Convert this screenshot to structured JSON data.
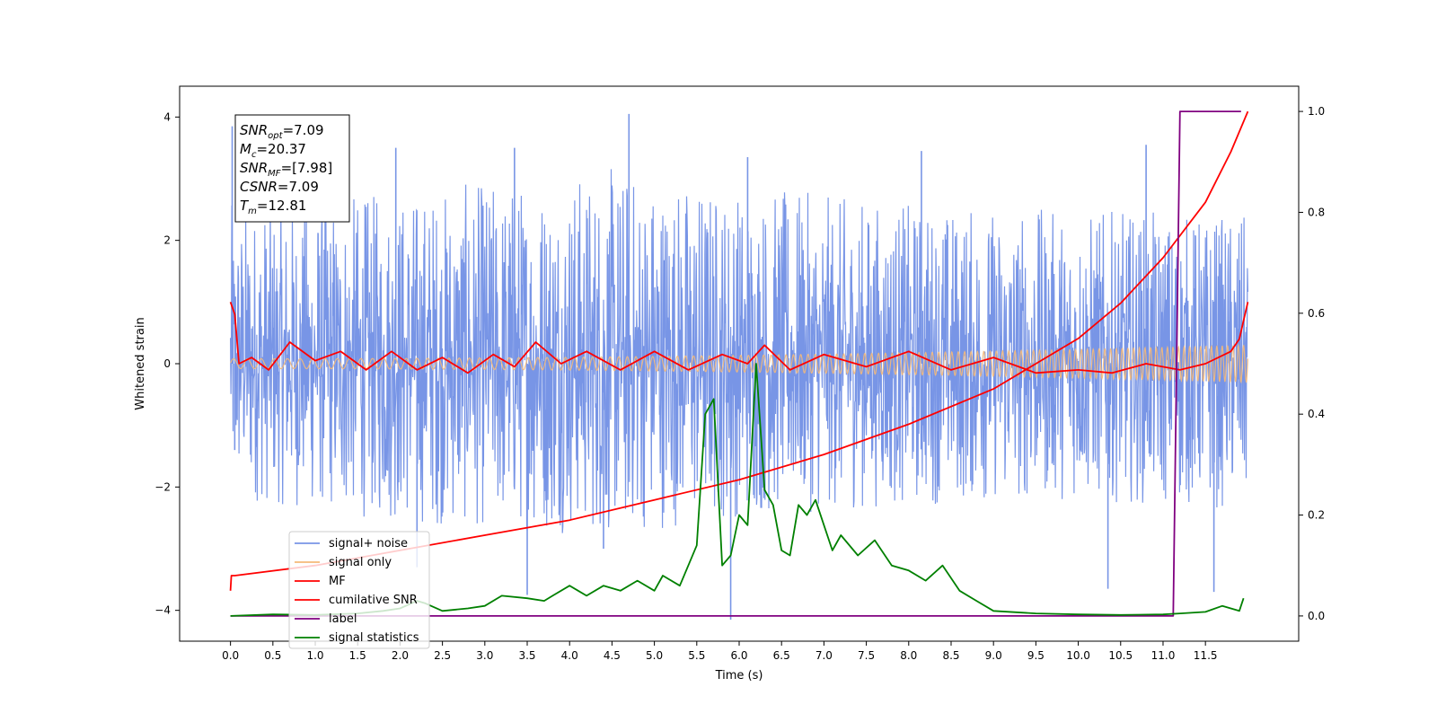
{
  "chart_data": {
    "type": "line",
    "xlabel": "Time (s)",
    "ylabel": "Whitened strain",
    "xlim": [
      -0.6,
      12.6
    ],
    "ylim": [
      -4.5,
      4.5
    ],
    "y2lim": [
      -0.05,
      1.05
    ],
    "x_ticks": [
      0.0,
      0.5,
      1.0,
      1.5,
      2.0,
      2.5,
      3.0,
      3.5,
      4.0,
      4.5,
      5.0,
      5.5,
      6.0,
      6.5,
      7.0,
      7.5,
      8.0,
      8.5,
      9.0,
      9.5,
      10.0,
      10.5,
      11.0,
      11.5
    ],
    "x_tick_labels": [
      "0.0",
      "0.5",
      "1.0",
      "1.5",
      "2.0",
      "2.5",
      "3.0",
      "3.5",
      "4.0",
      "4.5",
      "5.0",
      "5.5",
      "6.0",
      "6.5",
      "7.0",
      "7.5",
      "8.0",
      "8.5",
      "9.0",
      "9.5",
      "10.0",
      "10.5",
      "11.0",
      "11.5"
    ],
    "y_ticks": [
      -4,
      -2,
      0,
      2,
      4
    ],
    "y_tick_labels": [
      "−4",
      "−2",
      "0",
      "2",
      "4"
    ],
    "y2_ticks": [
      0.0,
      0.2,
      0.4,
      0.6,
      0.8,
      1.0
    ],
    "y2_tick_labels": [
      "0.0",
      "0.2",
      "0.4",
      "0.6",
      "0.8",
      "1.0"
    ],
    "grid": false,
    "legend_position": "bottom-left",
    "annotation_box": {
      "lines": [
        {
          "sym": "SNR",
          "sub": "opt",
          "val": "=7.09"
        },
        {
          "sym": "M",
          "sub": "c",
          "val": "=20.37"
        },
        {
          "sym": "SNR",
          "sub": "MF",
          "val": "=[7.98]"
        },
        {
          "sym": "CSNR",
          "sub": "",
          "val": "=7.09"
        },
        {
          "sym": "T",
          "sub": "m",
          "val": "=12.81"
        }
      ]
    },
    "series": [
      {
        "name": "signal+ noise",
        "axis": "left",
        "color": "#7895e6",
        "kind": "noise",
        "envelope_upper": [
          [
            0.0,
            2.6
          ],
          [
            2.0,
            2.8
          ],
          [
            4.5,
            3.2
          ],
          [
            6.0,
            2.9
          ],
          [
            8.0,
            2.6
          ],
          [
            10.0,
            2.5
          ],
          [
            12.0,
            2.4
          ]
        ],
        "envelope_lower": [
          [
            0.0,
            -2.2
          ],
          [
            2.0,
            -2.6
          ],
          [
            4.5,
            -2.8
          ],
          [
            6.0,
            -2.5
          ],
          [
            8.0,
            -2.3
          ],
          [
            10.0,
            -2.2
          ],
          [
            12.0,
            -2.4
          ]
        ],
        "spikes": [
          [
            0.02,
            3.85
          ],
          [
            0.05,
            -1.4
          ],
          [
            4.7,
            4.05
          ],
          [
            10.8,
            3.55
          ],
          [
            8.15,
            3.45
          ],
          [
            6.1,
            3.35
          ],
          [
            1.95,
            3.5
          ],
          [
            3.35,
            3.5
          ],
          [
            5.9,
            -4.15
          ],
          [
            3.5,
            -3.75
          ],
          [
            10.35,
            -3.65
          ],
          [
            11.6,
            -3.7
          ],
          [
            2.2,
            -3.3
          ],
          [
            4.4,
            -3.0
          ]
        ]
      },
      {
        "name": "signal only",
        "axis": "left",
        "color": "#f5b978",
        "kind": "chirp",
        "x_start": 0.0,
        "x_end": 12.0,
        "amplitude_start": 0.08,
        "amplitude_end": 0.3,
        "freq_start": 6.0,
        "freq_end": 16.0
      },
      {
        "name": "MF",
        "axis": "left",
        "color": "#ff0000",
        "x": [
          0.0,
          0.05,
          0.1,
          0.25,
          0.45,
          0.7,
          1.0,
          1.3,
          1.6,
          1.9,
          2.2,
          2.5,
          2.8,
          3.1,
          3.35,
          3.6,
          3.9,
          4.2,
          4.6,
          5.0,
          5.4,
          5.8,
          6.1,
          6.3,
          6.6,
          7.0,
          7.5,
          8.0,
          8.5,
          9.0,
          9.5,
          10.0,
          10.4,
          10.8,
          11.2,
          11.5,
          11.8,
          11.9,
          12.0
        ],
        "y": [
          1.0,
          0.8,
          0.0,
          0.1,
          -0.1,
          0.35,
          0.05,
          0.2,
          -0.1,
          0.2,
          -0.1,
          0.1,
          -0.15,
          0.15,
          -0.05,
          0.35,
          0.0,
          0.2,
          -0.1,
          0.2,
          -0.1,
          0.15,
          0.0,
          0.3,
          -0.1,
          0.15,
          -0.05,
          0.2,
          -0.1,
          0.1,
          -0.15,
          -0.1,
          -0.15,
          0.0,
          -0.1,
          0.0,
          0.2,
          0.4,
          1.0
        ]
      },
      {
        "name": "cumilative SNR",
        "axis": "right",
        "color": "#ff0000",
        "x": [
          0.0,
          0.01,
          0.05,
          1.0,
          2.0,
          3.0,
          4.0,
          5.0,
          6.0,
          7.0,
          8.0,
          9.0,
          9.5,
          10.0,
          10.5,
          11.0,
          11.5,
          11.8,
          12.0
        ],
        "y": [
          0.05,
          0.08,
          0.08,
          0.1,
          0.13,
          0.16,
          0.19,
          0.23,
          0.27,
          0.32,
          0.38,
          0.45,
          0.5,
          0.55,
          0.62,
          0.71,
          0.82,
          0.92,
          1.0
        ]
      },
      {
        "name": "label",
        "axis": "right",
        "color": "#800080",
        "x": [
          0.0,
          11.12,
          11.2,
          11.92
        ],
        "y": [
          0.0,
          0.0,
          1.0,
          1.0
        ]
      },
      {
        "name": "signal statistics",
        "axis": "right",
        "color": "#008000",
        "x": [
          0.0,
          0.5,
          1.0,
          1.5,
          1.8,
          2.0,
          2.2,
          2.3,
          2.5,
          2.8,
          3.0,
          3.2,
          3.5,
          3.7,
          3.8,
          4.0,
          4.1,
          4.2,
          4.4,
          4.6,
          4.8,
          5.0,
          5.1,
          5.3,
          5.4,
          5.5,
          5.6,
          5.7,
          5.8,
          5.9,
          6.0,
          6.1,
          6.2,
          6.3,
          6.4,
          6.5,
          6.6,
          6.7,
          6.8,
          6.9,
          7.0,
          7.1,
          7.2,
          7.4,
          7.6,
          7.8,
          8.0,
          8.2,
          8.4,
          8.6,
          8.8,
          9.0,
          9.5,
          10.0,
          10.5,
          11.0,
          11.2,
          11.5,
          11.7,
          11.9,
          11.95
        ],
        "y": [
          0.0,
          0.003,
          0.002,
          0.005,
          0.01,
          0.015,
          0.03,
          0.025,
          0.01,
          0.015,
          0.02,
          0.04,
          0.035,
          0.03,
          0.04,
          0.06,
          0.05,
          0.04,
          0.06,
          0.05,
          0.07,
          0.05,
          0.08,
          0.06,
          0.1,
          0.14,
          0.4,
          0.43,
          0.1,
          0.12,
          0.2,
          0.18,
          0.5,
          0.25,
          0.22,
          0.13,
          0.12,
          0.22,
          0.2,
          0.23,
          0.18,
          0.13,
          0.16,
          0.12,
          0.15,
          0.1,
          0.09,
          0.07,
          0.1,
          0.05,
          0.03,
          0.01,
          0.005,
          0.003,
          0.002,
          0.003,
          0.005,
          0.008,
          0.02,
          0.01,
          0.035
        ]
      }
    ]
  }
}
